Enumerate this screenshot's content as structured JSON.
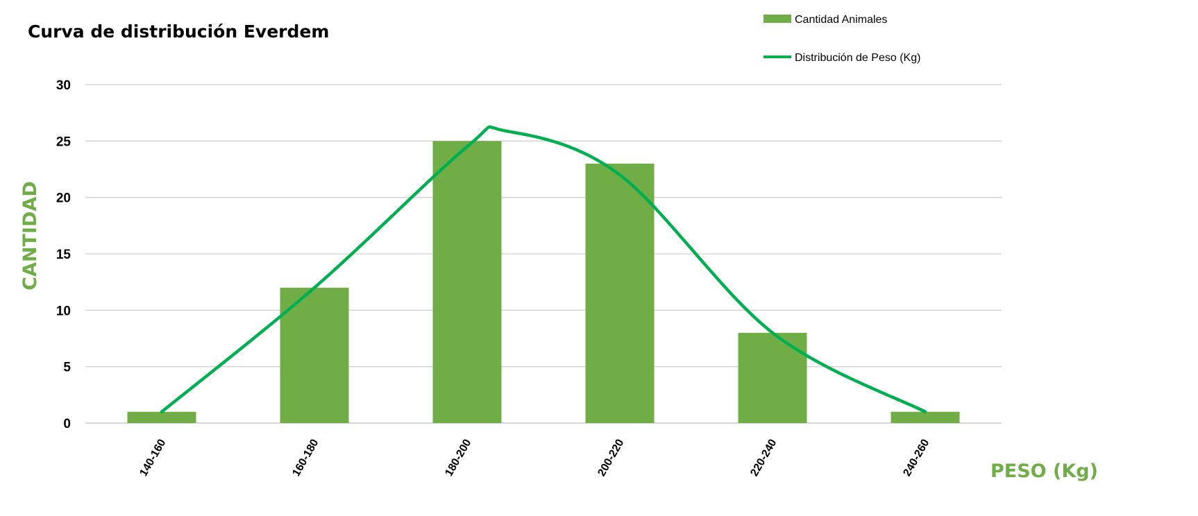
{
  "chart_data": {
    "type": "bar",
    "title": "Curva de distribución Everdem",
    "xlabel": "PESO (Kg)",
    "ylabel": "CANTIDAD",
    "categories": [
      "140-160",
      "160-180",
      "180-200",
      "200-220",
      "220-240",
      "240-260"
    ],
    "series": [
      {
        "name": "Cantidad Animales",
        "type": "bar",
        "color": "#70AD47",
        "values": [
          1,
          12,
          25,
          23,
          8,
          1
        ]
      },
      {
        "name": "Distribución de Peso (Kg)",
        "type": "line",
        "smooth": true,
        "color": "#00B050",
        "points": [
          {
            "x": "140-160",
            "y": 1
          },
          {
            "x": "160-180",
            "y": 12
          },
          {
            "x": "180-200",
            "y": 24.5
          },
          {
            "x": "190-200",
            "y": 25.9
          },
          {
            "x": "200-220",
            "y": 22
          },
          {
            "x": "220-240",
            "y": 8
          },
          {
            "x": "240-260",
            "y": 1
          }
        ]
      }
    ],
    "ylim": [
      0,
      30
    ],
    "yticks": [
      0,
      5,
      10,
      15,
      20,
      25,
      30
    ],
    "grid": true,
    "legend": "top-right",
    "axis_label_color": "#70AD47"
  }
}
